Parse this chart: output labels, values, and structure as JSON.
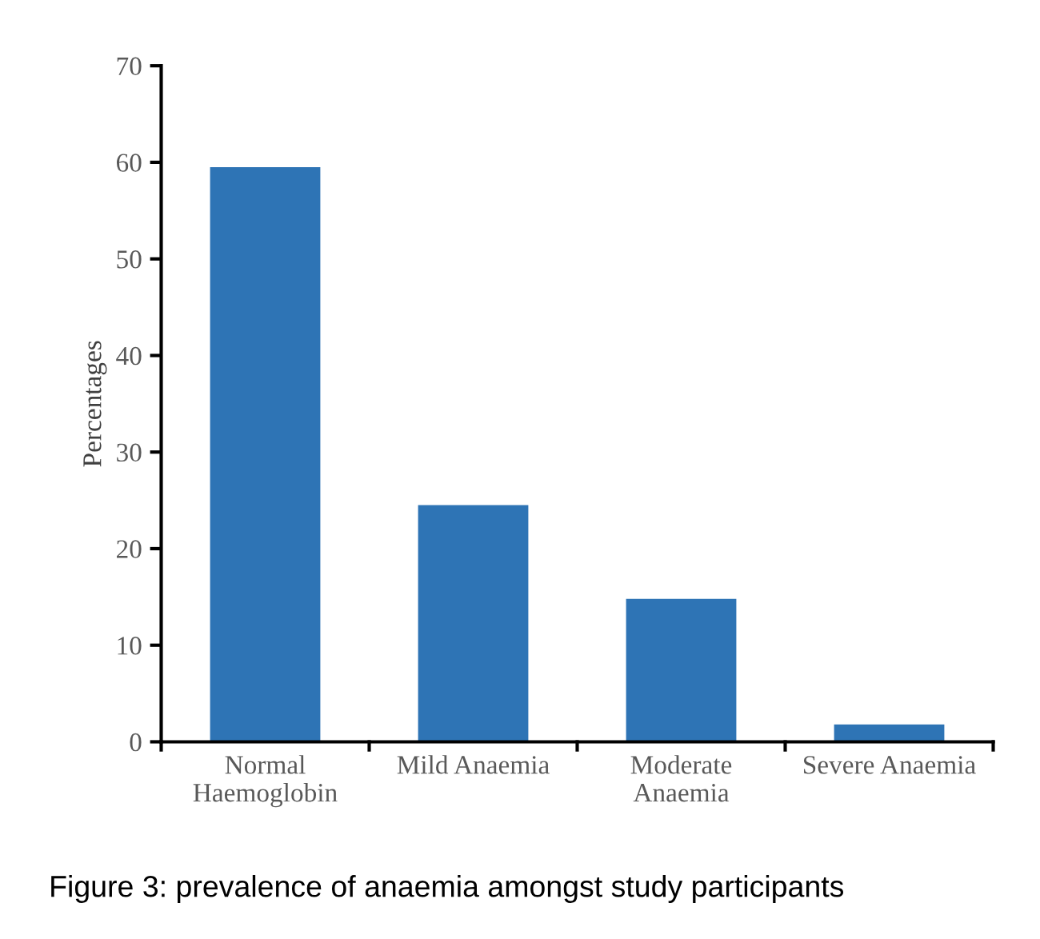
{
  "chart_data": {
    "type": "bar",
    "categories": [
      "Normal\nHaemoglobin",
      "Mild Anaemia",
      "Moderate\nAnaemia",
      "Severe Anaemia"
    ],
    "values": [
      59.5,
      24.5,
      14.8,
      1.8
    ],
    "color": "#2e74b5",
    "ylabel": "Percentages",
    "ylim": [
      0,
      70
    ],
    "yticks": [
      0,
      10,
      20,
      30,
      40,
      50,
      60,
      70
    ],
    "grid": false,
    "legend": false,
    "annotations": [
      "Figure 3: prevalence of anaemia amongst study participants"
    ]
  }
}
